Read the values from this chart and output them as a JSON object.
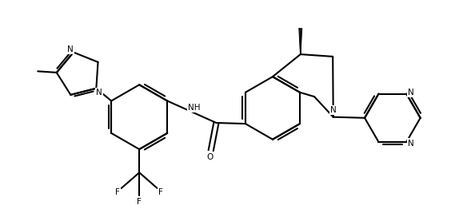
{
  "bg_color": "#ffffff",
  "line_color": "#000000",
  "line_width": 1.5,
  "font_size": 7.5,
  "fig_width": 5.64,
  "fig_height": 2.72,
  "dpi": 100,
  "xlim": [
    0,
    10
  ],
  "ylim": [
    0,
    4.82
  ]
}
